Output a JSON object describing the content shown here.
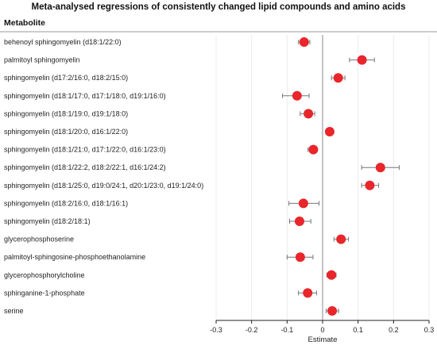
{
  "chart_data": {
    "type": "forest",
    "title": "Meta-analysed regressions of consistently changed lipid compounds and amino acids",
    "column_header": "Metabolite",
    "xlabel": "Estimate",
    "xlim": [
      -0.3,
      0.3
    ],
    "xticks": [
      "-0.3",
      "-0.2",
      "-0.1",
      "0",
      "0.1",
      "0.2",
      "0.3"
    ],
    "reference_line": 0,
    "grid": "vertical",
    "point_color": "#e8262b",
    "rows": [
      {
        "label": "behenoyl sphingomyelin (d18:1/22:0)",
        "estimate": -0.052,
        "lower": -0.068,
        "upper": -0.036
      },
      {
        "label": "palmitoyl sphingomyelin",
        "estimate": 0.111,
        "lower": 0.076,
        "upper": 0.146
      },
      {
        "label": "sphingomyelin (d17:2/16:0, d18:2/15:0)",
        "estimate": 0.044,
        "lower": 0.025,
        "upper": 0.063
      },
      {
        "label": "sphingomyelin (d18:1/17:0, d17:1/18:0, d19:1/16:0)",
        "estimate": -0.072,
        "lower": -0.113,
        "upper": -0.038
      },
      {
        "label": "sphingomyelin (d18:1/19:0, d19:1/18:0)",
        "estimate": -0.04,
        "lower": -0.063,
        "upper": -0.022
      },
      {
        "label": "sphingomyelin (d18:1/20:0, d16:1/22:0)",
        "estimate": 0.02,
        "lower": 0.012,
        "upper": 0.028
      },
      {
        "label": "sphingomyelin (d18:1/21:0, d17:1/22:0, d16:1/23:0)",
        "estimate": -0.026,
        "lower": -0.041,
        "upper": -0.016
      },
      {
        "label": "sphingomyelin (d18:1/22:2, d18:2/22:1, d16:1/24:2)",
        "estimate": 0.163,
        "lower": 0.11,
        "upper": 0.216
      },
      {
        "label": "sphingomyelin (d18:1/25:0, d19:0/24:1, d20:1/23:0, d19:1/24:0)",
        "estimate": 0.133,
        "lower": 0.11,
        "upper": 0.158
      },
      {
        "label": "sphingomyelin (d18:2/16:0, d18:1/16:1)",
        "estimate": -0.054,
        "lower": -0.095,
        "upper": -0.01
      },
      {
        "label": "sphingomyelin (d18:2/18:1)",
        "estimate": -0.065,
        "lower": -0.093,
        "upper": -0.033
      },
      {
        "label": "glycerophosphoserine",
        "estimate": 0.052,
        "lower": 0.032,
        "upper": 0.073
      },
      {
        "label": "palmitoyl-sphingosine-phosphoethanolamine",
        "estimate": -0.063,
        "lower": -0.1,
        "upper": -0.027
      },
      {
        "label": "glycerophosphorylcholine",
        "estimate": 0.025,
        "lower": 0.012,
        "upper": 0.038
      },
      {
        "label": "sphinganine-1-phosphate",
        "estimate": -0.042,
        "lower": -0.068,
        "upper": -0.017
      },
      {
        "label": "serine",
        "estimate": 0.027,
        "lower": 0.01,
        "upper": 0.045
      }
    ]
  }
}
